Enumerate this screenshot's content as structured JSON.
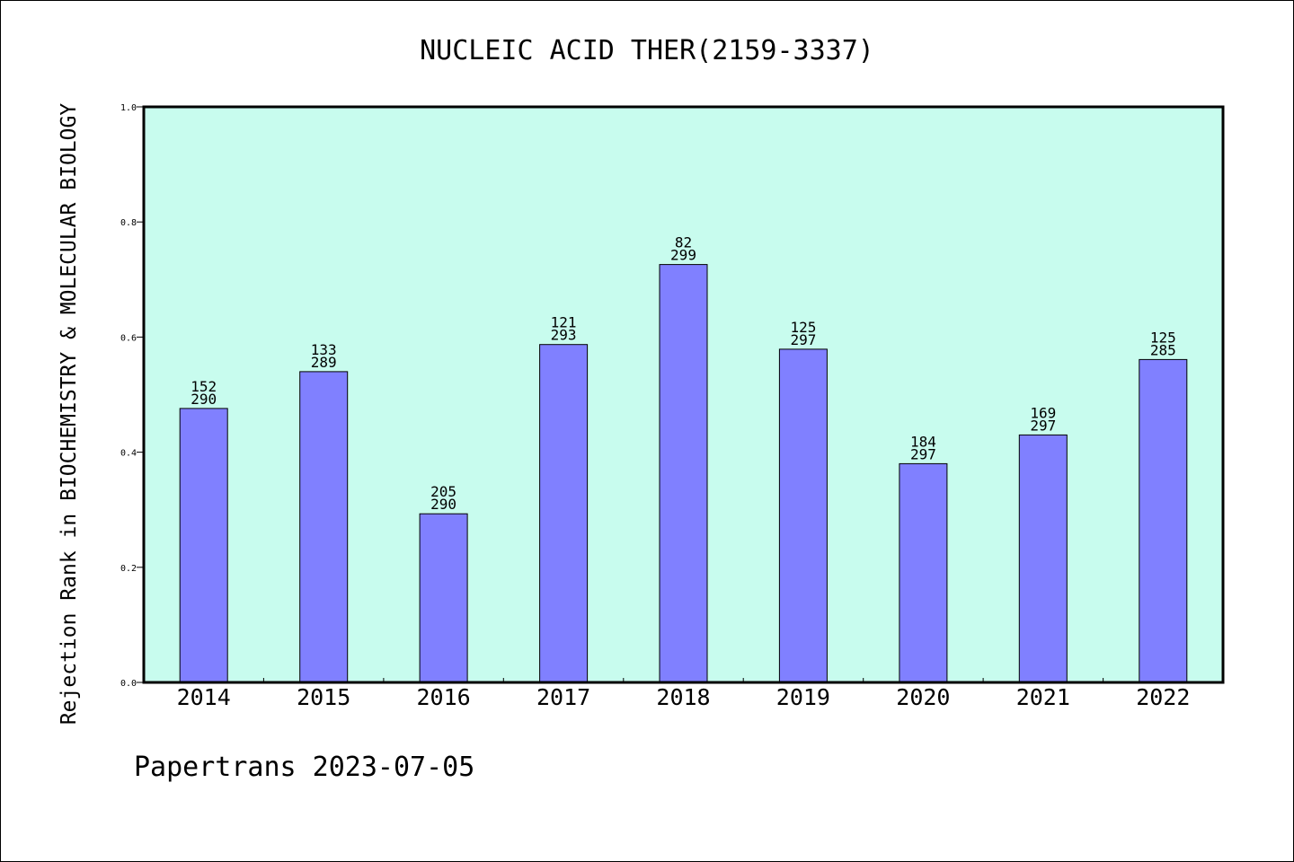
{
  "chart_data": {
    "type": "bar",
    "title": "NUCLEIC ACID THER(2159-3337)",
    "xlabel": "",
    "ylabel": "Rejection Rank in BIOCHEMISTRY & MOLECULAR BIOLOGY",
    "ylim": [
      0,
      1.0
    ],
    "yticks": [
      "0.0",
      "0.2",
      "0.4",
      "0.6",
      "0.8",
      "1.0"
    ],
    "categories": [
      "2014",
      "2015",
      "2016",
      "2017",
      "2018",
      "2019",
      "2020",
      "2021",
      "2022"
    ],
    "values": [
      0.476,
      0.54,
      0.293,
      0.587,
      0.726,
      0.579,
      0.38,
      0.43,
      0.561
    ],
    "ranks": [
      "152",
      "133",
      "205",
      "121",
      "82",
      "125",
      "184",
      "169",
      "125"
    ],
    "totals": [
      "290",
      "289",
      "290",
      "293",
      "299",
      "297",
      "297",
      "297",
      "285"
    ],
    "grid": false,
    "colors": {
      "plot_background": "#c8fcee",
      "bar_fill": "#8080ff",
      "bar_stroke": "#000000"
    }
  },
  "footer": {
    "text": "Papertrans 2023-07-05"
  }
}
